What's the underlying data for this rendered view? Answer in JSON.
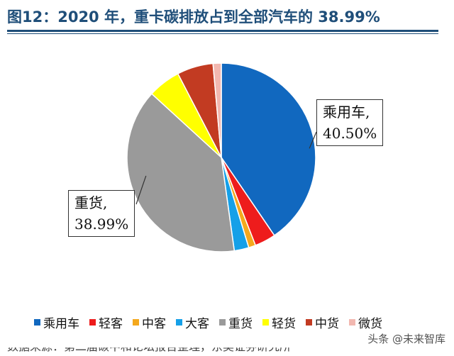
{
  "header": {
    "title": "图12：2020 年，重卡碳排放占到全部汽车的 38.99%"
  },
  "chart_data": {
    "type": "pie",
    "title": "图12：2020 年，重卡碳排放占到全部汽车的 38.99%",
    "start_angle_deg": 0,
    "direction": "clockwise",
    "slices": [
      {
        "label": "乘用车",
        "value": 40.5,
        "color": "#1168bf"
      },
      {
        "label": "轻客",
        "value": 3.6,
        "color": "#ee1c1c"
      },
      {
        "label": "中客",
        "value": 1.2,
        "color": "#f4a81d"
      },
      {
        "label": "大客",
        "value": 2.5,
        "color": "#15a0e8"
      },
      {
        "label": "重货",
        "value": 38.99,
        "color": "#9a9a9a"
      },
      {
        "label": "轻货",
        "value": 5.6,
        "color": "#ffff00"
      },
      {
        "label": "中货",
        "value": 6.2,
        "color": "#c23b22"
      },
      {
        "label": "微货",
        "value": 1.41,
        "color": "#f2b8b0"
      }
    ],
    "callouts": [
      {
        "label": "乘用车,",
        "value": "40.50%"
      },
      {
        "label": "重货,",
        "value": "38.99%"
      }
    ]
  },
  "legend": {
    "items": [
      {
        "label": "乘用车",
        "color": "#1168bf"
      },
      {
        "label": "轻客",
        "color": "#ee1c1c"
      },
      {
        "label": "中客",
        "color": "#f4a81d"
      },
      {
        "label": "大客",
        "color": "#15a0e8"
      },
      {
        "label": "重货",
        "color": "#9a9a9a"
      },
      {
        "label": "轻货",
        "color": "#ffff00"
      },
      {
        "label": "中货",
        "color": "#c23b22"
      },
      {
        "label": "微货",
        "color": "#f2b8b0"
      }
    ]
  },
  "watermark": "头条 @未来智库",
  "footer_cut_text": "数据来源：第二届碳中和论坛报告整理，东吴证券研究所"
}
